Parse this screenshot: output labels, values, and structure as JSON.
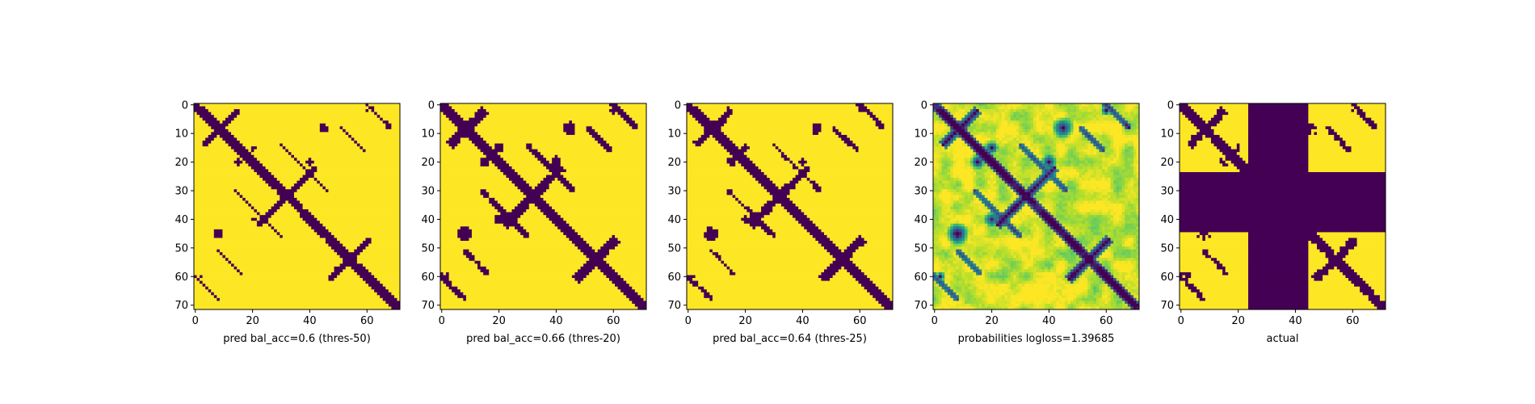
{
  "colors": {
    "low": "#440154",
    "high": "#fde725",
    "colormap": "viridis"
  },
  "chart_data": [
    {
      "type": "heatmap",
      "xlabel": "pred bal_acc=0.6 (thres-50)",
      "x_ticks": [
        "0",
        "20",
        "40",
        "60"
      ],
      "y_ticks": [
        "0",
        "10",
        "20",
        "30",
        "40",
        "50",
        "60",
        "70"
      ],
      "xlim": [
        0,
        71
      ],
      "ylim": [
        71,
        0
      ],
      "pattern": "binary_pred_sparse"
    },
    {
      "type": "heatmap",
      "xlabel": "pred bal_acc=0.66 (thres-20)",
      "x_ticks": [
        "0",
        "20",
        "40",
        "60"
      ],
      "y_ticks": [
        "0",
        "10",
        "20",
        "30",
        "40",
        "50",
        "60",
        "70"
      ],
      "xlim": [
        0,
        71
      ],
      "ylim": [
        71,
        0
      ],
      "pattern": "binary_pred_dense"
    },
    {
      "type": "heatmap",
      "xlabel": "pred bal_acc=0.64 (thres-25)",
      "x_ticks": [
        "0",
        "20",
        "40",
        "60"
      ],
      "y_ticks": [
        "0",
        "10",
        "20",
        "30",
        "40",
        "50",
        "60",
        "70"
      ],
      "xlim": [
        0,
        71
      ],
      "ylim": [
        71,
        0
      ],
      "pattern": "binary_pred_medium"
    },
    {
      "type": "heatmap",
      "xlabel": "probabilities logloss=1.39685",
      "x_ticks": [
        "0",
        "20",
        "40",
        "60"
      ],
      "y_ticks": [
        "0",
        "10",
        "20",
        "30",
        "40",
        "50",
        "60",
        "70"
      ],
      "xlim": [
        0,
        71
      ],
      "ylim": [
        71,
        0
      ],
      "pattern": "continuous_probabilities"
    },
    {
      "type": "heatmap",
      "xlabel": "actual",
      "x_ticks": [
        "0",
        "20",
        "40",
        "60"
      ],
      "y_ticks": [
        "0",
        "10",
        "20",
        "30",
        "40",
        "50",
        "60",
        "70"
      ],
      "xlim": [
        0,
        71
      ],
      "ylim": [
        71,
        0
      ],
      "masked_band": [
        24,
        44
      ],
      "pattern": "actual_with_mask"
    }
  ]
}
